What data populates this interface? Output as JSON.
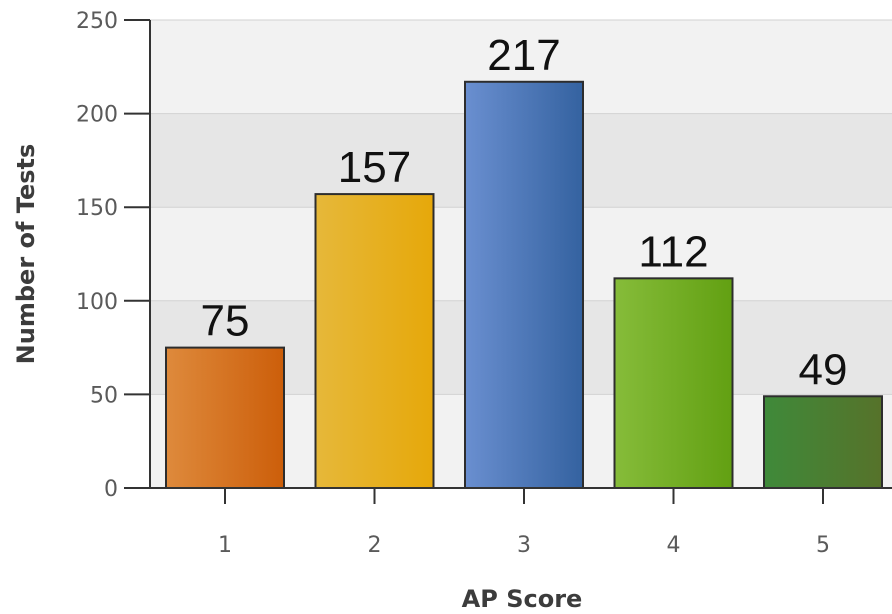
{
  "chart_data": {
    "type": "bar",
    "xlabel": "AP Score",
    "ylabel": "Number of Tests",
    "categories": [
      "1",
      "2",
      "3",
      "4",
      "5"
    ],
    "values": [
      75,
      157,
      217,
      112,
      49
    ],
    "data_labels": [
      "75",
      "157",
      "217",
      "112",
      "49"
    ],
    "ylim": [
      0,
      250
    ],
    "yticks": [
      "0",
      "50",
      "100",
      "150",
      "200",
      "250"
    ],
    "grid": "horizontal bands",
    "legend": "none",
    "colors": {
      "bars": [
        [
          "#de8a3c",
          "#cc5e0a"
        ],
        [
          "#e6b83a",
          "#e6a80a"
        ],
        [
          "#6a8fd0",
          "#3462a0"
        ],
        [
          "#86bc3a",
          "#62a012"
        ],
        [
          "#3f8a3a",
          "#56722a"
        ]
      ],
      "band_dark": "#e6e6e6",
      "band_light": "#f2f2f2"
    }
  }
}
